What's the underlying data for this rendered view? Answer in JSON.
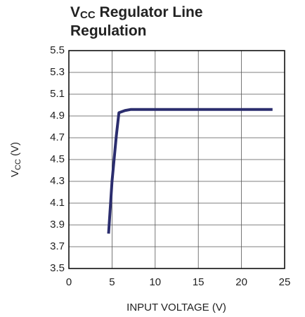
{
  "chart_data": {
    "type": "line",
    "title": [
      "V",
      "CC",
      " Regulator Line",
      "Regulation"
    ],
    "x_label": "INPUT VOLTAGE (V)",
    "y_label": [
      "V",
      "CC",
      " (V)"
    ],
    "x": [
      4.6,
      5.0,
      5.5,
      5.8,
      6.5,
      7.2,
      23.6
    ],
    "series": [
      {
        "color": "#2b2d6e",
        "values": [
          3.82,
          4.3,
          4.72,
          4.93,
          4.95,
          4.96,
          4.96
        ]
      }
    ],
    "xlim": [
      0,
      25
    ],
    "xticks": [
      0,
      5,
      10,
      15,
      20,
      25
    ],
    "ylim": [
      3.5,
      5.5
    ],
    "yticks": [
      3.5,
      3.7,
      3.9,
      4.1,
      4.3,
      4.5,
      4.7,
      4.9,
      5.1,
      5.3,
      5.5
    ],
    "grid": true
  }
}
